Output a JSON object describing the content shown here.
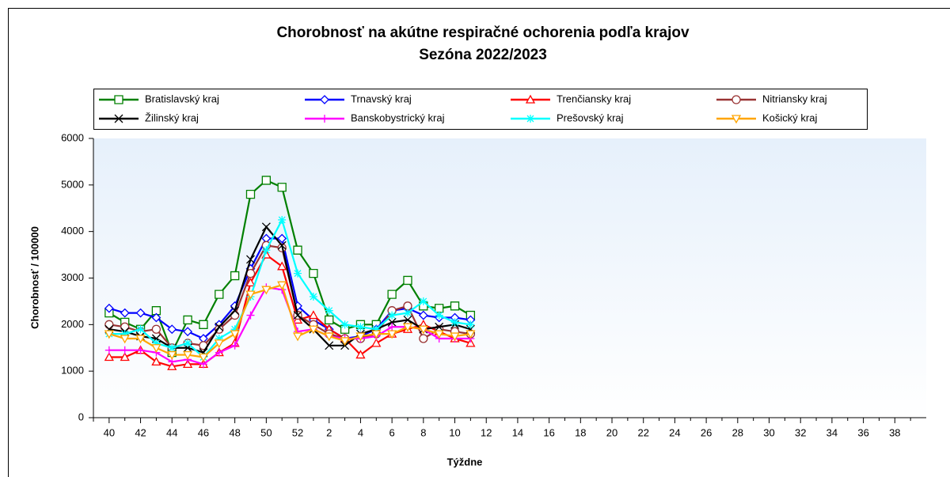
{
  "chart_data": {
    "type": "line",
    "title": "Chorobnosť na akútne respiračné ochorenia podľa krajov",
    "subtitle": "Sezóna 2022/2023",
    "x_label": "Týždne",
    "y_label": "Chorobnosť / 100000",
    "categories": [
      "40",
      null,
      "42",
      null,
      "44",
      null,
      "46",
      null,
      "48",
      null,
      "50",
      null,
      "52",
      null,
      "2",
      null,
      "4",
      null,
      "6",
      null,
      "8",
      null,
      "10",
      null,
      "12",
      null,
      "14",
      null,
      "16",
      null,
      "18",
      null,
      "20",
      null,
      "22",
      null,
      "24",
      null,
      "26",
      null,
      "28",
      null,
      "30",
      null,
      "32",
      null,
      "34",
      null,
      "36",
      null,
      "38",
      null
    ],
    "ylim": [
      0,
      6000
    ],
    "yticks": [
      0,
      1000,
      2000,
      3000,
      4000,
      5000,
      6000
    ],
    "series": [
      {
        "name": "Bratislavský kraj",
        "color": "#008000",
        "marker": "square",
        "values": [
          2250,
          2050,
          1900,
          2300,
          1400,
          2100,
          2000,
          2650,
          3050,
          4800,
          5100,
          4950,
          3600,
          3100,
          2100,
          1900,
          2000,
          2000,
          2650,
          2950,
          2400,
          2350,
          2400,
          2200,
          null,
          null,
          null,
          null,
          null,
          null,
          null,
          null,
          null,
          null,
          null,
          null,
          null,
          null,
          null,
          null,
          null,
          null,
          null,
          null,
          null,
          null,
          null,
          null,
          null,
          null,
          null,
          null
        ]
      },
      {
        "name": "Trnavský kraj",
        "color": "#0000ff",
        "marker": "diamond",
        "values": [
          2350,
          2250,
          2250,
          2150,
          1900,
          1850,
          1700,
          2000,
          2400,
          3200,
          3850,
          3850,
          2400,
          2100,
          1900,
          1700,
          1750,
          1900,
          2300,
          2350,
          2200,
          2150,
          2150,
          2100,
          null,
          null,
          null,
          null,
          null,
          null,
          null,
          null,
          null,
          null,
          null,
          null,
          null,
          null,
          null,
          null,
          null,
          null,
          null,
          null,
          null,
          null,
          null,
          null,
          null,
          null,
          null,
          null
        ]
      },
      {
        "name": "Trenčiansky kraj",
        "color": "#ff0000",
        "marker": "triangle",
        "values": [
          1300,
          1300,
          1450,
          1200,
          1100,
          1150,
          1150,
          1400,
          1600,
          2900,
          3500,
          3250,
          2100,
          2200,
          1900,
          1700,
          1350,
          1600,
          1800,
          1900,
          2000,
          1850,
          1700,
          1600,
          null,
          null,
          null,
          null,
          null,
          null,
          null,
          null,
          null,
          null,
          null,
          null,
          null,
          null,
          null,
          null,
          null,
          null,
          null,
          null,
          null,
          null,
          null,
          null,
          null,
          null,
          null,
          null
        ]
      },
      {
        "name": "Nitriansky kraj",
        "color": "#993333",
        "marker": "circle",
        "values": [
          2000,
          1950,
          1850,
          1900,
          1500,
          1600,
          1550,
          1900,
          2200,
          3100,
          3700,
          3650,
          2200,
          2000,
          1800,
          1700,
          1700,
          1800,
          2300,
          2400,
          1700,
          1900,
          1850,
          1800,
          null,
          null,
          null,
          null,
          null,
          null,
          null,
          null,
          null,
          null,
          null,
          null,
          null,
          null,
          null,
          null,
          null,
          null,
          null,
          null,
          null,
          null,
          null,
          null,
          null,
          null,
          null,
          null
        ]
      },
      {
        "name": "Žilinský kraj",
        "color": "#000000",
        "marker": "x",
        "values": [
          1900,
          1850,
          1750,
          1700,
          1500,
          1500,
          1400,
          1950,
          2300,
          3400,
          4100,
          3700,
          2200,
          1900,
          1550,
          1550,
          1800,
          1900,
          2050,
          2100,
          1900,
          1950,
          2000,
          1900,
          null,
          null,
          null,
          null,
          null,
          null,
          null,
          null,
          null,
          null,
          null,
          null,
          null,
          null,
          null,
          null,
          null,
          null,
          null,
          null,
          null,
          null,
          null,
          null,
          null,
          null,
          null,
          null
        ]
      },
      {
        "name": "Banskobystrický kraj",
        "color": "#ff00ff",
        "marker": "plus",
        "values": [
          1450,
          1450,
          1450,
          1400,
          1200,
          1250,
          1150,
          1400,
          1550,
          2200,
          2800,
          2750,
          1850,
          1900,
          1750,
          1700,
          1700,
          1750,
          1950,
          1950,
          1900,
          1700,
          1700,
          1700,
          null,
          null,
          null,
          null,
          null,
          null,
          null,
          null,
          null,
          null,
          null,
          null,
          null,
          null,
          null,
          null,
          null,
          null,
          null,
          null,
          null,
          null,
          null,
          null,
          null,
          null,
          null,
          null
        ]
      },
      {
        "name": "Prešovský kraj",
        "color": "#00ffff",
        "marker": "star",
        "values": [
          1800,
          1800,
          1900,
          1600,
          1500,
          1600,
          1300,
          1700,
          1900,
          2600,
          3600,
          4250,
          3100,
          2600,
          2300,
          2000,
          1950,
          1900,
          2200,
          2250,
          2500,
          2200,
          2050,
          2000,
          null,
          null,
          null,
          null,
          null,
          null,
          null,
          null,
          null,
          null,
          null,
          null,
          null,
          null,
          null,
          null,
          null,
          null,
          null,
          null,
          null,
          null,
          null,
          null,
          null,
          null,
          null,
          null
        ]
      },
      {
        "name": "Košický kraj",
        "color": "#ffa500",
        "marker": "triangle-down",
        "values": [
          1800,
          1700,
          1700,
          1500,
          1350,
          1350,
          1300,
          1600,
          1800,
          2650,
          2750,
          2850,
          1750,
          1900,
          1750,
          1650,
          1750,
          1800,
          1800,
          1950,
          1900,
          1800,
          1750,
          1800,
          null,
          null,
          null,
          null,
          null,
          null,
          null,
          null,
          null,
          null,
          null,
          null,
          null,
          null,
          null,
          null,
          null,
          null,
          null,
          null,
          null,
          null,
          null,
          null,
          null,
          null,
          null,
          null
        ]
      }
    ]
  }
}
